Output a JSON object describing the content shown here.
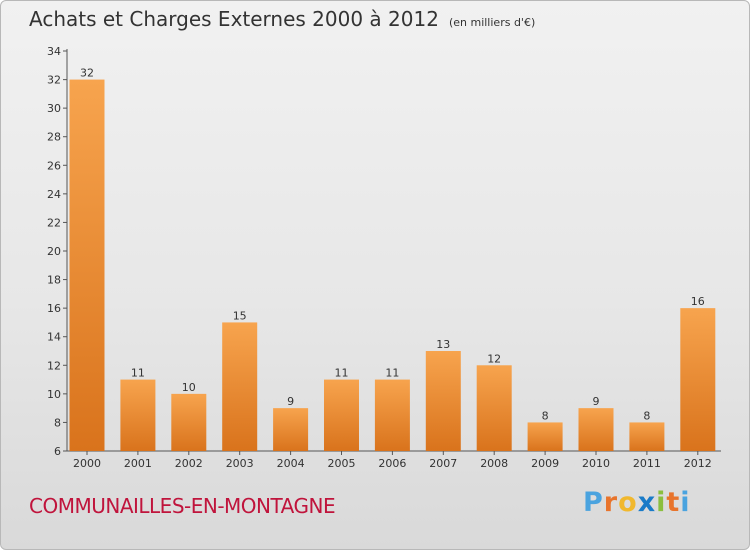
{
  "title": "Achats et Charges Externes 2000 à 2012",
  "unit": "(en milliers d'€)",
  "commune": "COMMUNAILLES-EN-MONTAGNE",
  "logo": {
    "text": "Proxiti",
    "letter_colors": [
      "#4aa3df",
      "#e8742c",
      "#f1b82d",
      "#1a7bc8",
      "#8bbf3f",
      "#e8742c",
      "#4aa3df"
    ]
  },
  "colors": {
    "bar_light": "#f7a44e",
    "bar_dark": "#d9731c",
    "axis": "#555555",
    "commune": "#c0143c"
  },
  "chart_data": {
    "type": "bar",
    "categories": [
      "2000",
      "2001",
      "2002",
      "2003",
      "2004",
      "2005",
      "2006",
      "2007",
      "2008",
      "2009",
      "2010",
      "2011",
      "2012"
    ],
    "values": [
      32,
      11,
      10,
      15,
      9,
      11,
      11,
      13,
      12,
      8,
      9,
      8,
      16
    ],
    "ylim": [
      6,
      34
    ],
    "yticks": [
      6,
      8,
      10,
      12,
      14,
      16,
      18,
      20,
      22,
      24,
      26,
      28,
      30,
      32,
      34
    ],
    "grid": false
  }
}
